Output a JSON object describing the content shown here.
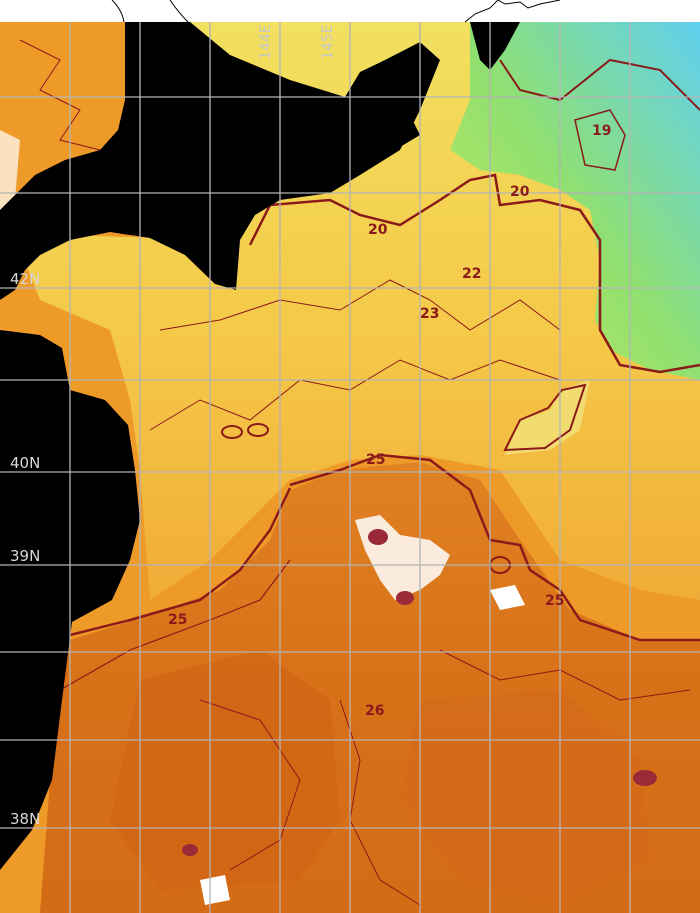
{
  "map": {
    "type": "sea-surface-temperature",
    "latitude_labels": [
      "42N",
      "40N",
      "39N",
      "38N"
    ],
    "longitude_labels": [
      "144E",
      "145E"
    ],
    "contour_labels": [
      "20",
      "20",
      "19",
      "22",
      "23",
      "25",
      "25",
      "25",
      "26"
    ],
    "colors": {
      "land": "#000000",
      "contour": "#8b1a1a",
      "grid": "#b4b4b4",
      "cold": "#60d8f0",
      "cool": "#a8e860",
      "mild": "#f5d85a",
      "warm": "#ee9a28",
      "hot": "#d86e18",
      "cloud_mask": "#ffffff"
    }
  }
}
